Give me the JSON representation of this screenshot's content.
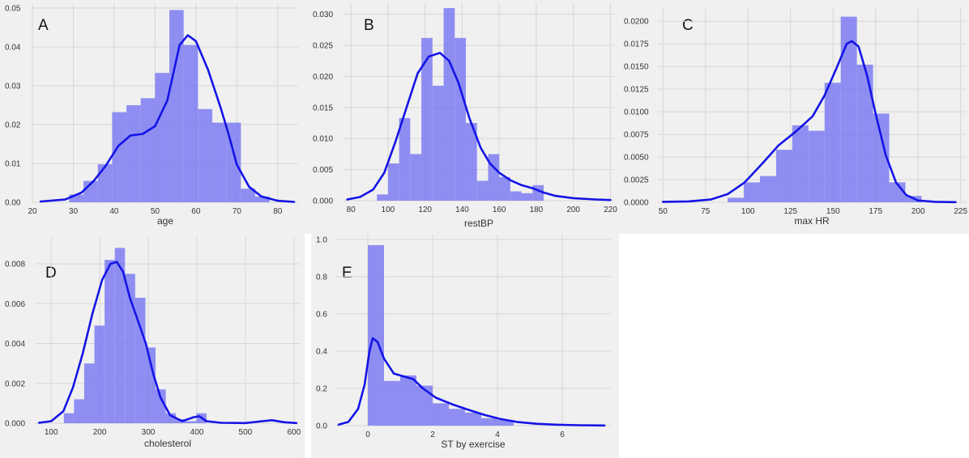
{
  "colors": {
    "panel_bg": "#f0f0f0",
    "bar": "#7878f2",
    "kde": "#1414e6",
    "grid": "#d6d6d6"
  },
  "chart_data": [
    {
      "panel": "A",
      "type": "bar",
      "subtype": "histogram-with-kde",
      "xlabel": "age",
      "xlim": [
        20,
        85
      ],
      "ylim": [
        0,
        0.05
      ],
      "xticks": [
        20,
        30,
        40,
        50,
        60,
        70,
        80
      ],
      "yticks": [
        "0.00",
        "0.01",
        "0.02",
        "0.03",
        "0.04",
        "0.05"
      ],
      "bins": [
        [
          29,
          32.5,
          0.002
        ],
        [
          32.5,
          36,
          0.0055
        ],
        [
          36,
          39.5,
          0.0098
        ],
        [
          39.5,
          43,
          0.0232
        ],
        [
          43,
          46.5,
          0.025
        ],
        [
          46.5,
          50,
          0.0268
        ],
        [
          50,
          53.5,
          0.0333
        ],
        [
          53.5,
          57,
          0.0495
        ],
        [
          57,
          60.5,
          0.0405
        ],
        [
          60.5,
          64,
          0.024
        ],
        [
          64,
          67.5,
          0.0205
        ],
        [
          67.5,
          71,
          0.0205
        ],
        [
          71,
          74.5,
          0.0035
        ],
        [
          74.5,
          78,
          0.0015
        ]
      ],
      "kde": [
        [
          22,
          0.0002
        ],
        [
          28,
          0.0007
        ],
        [
          32,
          0.0025
        ],
        [
          35,
          0.0055
        ],
        [
          38,
          0.0095
        ],
        [
          41,
          0.0145
        ],
        [
          44,
          0.0172
        ],
        [
          47,
          0.0176
        ],
        [
          50,
          0.0196
        ],
        [
          53,
          0.0262
        ],
        [
          56,
          0.0405
        ],
        [
          58,
          0.043
        ],
        [
          60,
          0.0415
        ],
        [
          63,
          0.034
        ],
        [
          66,
          0.0245
        ],
        [
          68,
          0.0175
        ],
        [
          70,
          0.0097
        ],
        [
          73,
          0.004
        ],
        [
          76,
          0.0015
        ],
        [
          80,
          0.0004
        ],
        [
          84,
          0.0001
        ]
      ]
    },
    {
      "panel": "B",
      "type": "bar",
      "subtype": "histogram-with-kde",
      "xlabel": "restBP",
      "xlim": [
        76,
        222
      ],
      "ylim": [
        0,
        0.031
      ],
      "xticks": [
        80,
        100,
        120,
        140,
        160,
        180,
        200,
        220
      ],
      "yticks": [
        "0.000",
        "0.005",
        "0.010",
        "0.015",
        "0.020",
        "0.025",
        "0.030"
      ],
      "bins": [
        [
          94,
          100,
          0.001
        ],
        [
          100,
          106,
          0.006
        ],
        [
          106,
          112,
          0.0133
        ],
        [
          112,
          118,
          0.0075
        ],
        [
          118,
          124,
          0.0262
        ],
        [
          124,
          130,
          0.0185
        ],
        [
          130,
          136,
          0.031
        ],
        [
          136,
          142,
          0.0262
        ],
        [
          142,
          148,
          0.0125
        ],
        [
          148,
          154,
          0.0032
        ],
        [
          154,
          160,
          0.0075
        ],
        [
          160,
          166,
          0.0038
        ],
        [
          166,
          172,
          0.0015
        ],
        [
          172,
          178,
          0.0012
        ],
        [
          178,
          184,
          0.0025
        ]
      ],
      "kde": [
        [
          78,
          0.0002
        ],
        [
          85,
          0.0006
        ],
        [
          92,
          0.0018
        ],
        [
          98,
          0.0045
        ],
        [
          104,
          0.0095
        ],
        [
          110,
          0.015
        ],
        [
          116,
          0.0205
        ],
        [
          122,
          0.0232
        ],
        [
          128,
          0.0238
        ],
        [
          133,
          0.0225
        ],
        [
          138,
          0.019
        ],
        [
          144,
          0.0132
        ],
        [
          150,
          0.0085
        ],
        [
          155,
          0.006
        ],
        [
          160,
          0.0045
        ],
        [
          166,
          0.0033
        ],
        [
          172,
          0.0025
        ],
        [
          178,
          0.002
        ],
        [
          184,
          0.0013
        ],
        [
          190,
          0.0008
        ],
        [
          200,
          0.0004
        ],
        [
          212,
          0.0002
        ],
        [
          220,
          0.0001
        ]
      ]
    },
    {
      "panel": "C",
      "type": "bar",
      "subtype": "histogram-with-kde",
      "xlabel": "max HR",
      "xlim": [
        47,
        228
      ],
      "ylim": [
        0,
        0.021
      ],
      "xticks": [
        50,
        75,
        100,
        125,
        150,
        175,
        200,
        225
      ],
      "yticks": [
        "0.0000",
        "0.0025",
        "0.0050",
        "0.0075",
        "0.0100",
        "0.0125",
        "0.0150",
        "0.0175",
        "0.0200"
      ],
      "bins": [
        [
          88,
          97.5,
          0.0005
        ],
        [
          97.5,
          107,
          0.0022
        ],
        [
          107,
          116.5,
          0.0029
        ],
        [
          116.5,
          126,
          0.0058
        ],
        [
          126,
          135.5,
          0.0085
        ],
        [
          135.5,
          145,
          0.0079
        ],
        [
          145,
          154.5,
          0.0132
        ],
        [
          154.5,
          164,
          0.0205
        ],
        [
          164,
          173.5,
          0.0152
        ],
        [
          173.5,
          183,
          0.0098
        ],
        [
          183,
          192.5,
          0.0022
        ],
        [
          192.5,
          202,
          0.0007
        ]
      ],
      "kde": [
        [
          50,
          5e-05
        ],
        [
          65,
          0.0001
        ],
        [
          78,
          0.0003
        ],
        [
          88,
          0.0009
        ],
        [
          98,
          0.0022
        ],
        [
          108,
          0.0042
        ],
        [
          118,
          0.0063
        ],
        [
          128,
          0.0078
        ],
        [
          138,
          0.0095
        ],
        [
          145,
          0.0118
        ],
        [
          152,
          0.0148
        ],
        [
          158,
          0.0175
        ],
        [
          161,
          0.0178
        ],
        [
          165,
          0.0172
        ],
        [
          170,
          0.014
        ],
        [
          175,
          0.0098
        ],
        [
          181,
          0.0052
        ],
        [
          187,
          0.0022
        ],
        [
          193,
          0.0008
        ],
        [
          200,
          0.0002
        ],
        [
          210,
          5e-05
        ],
        [
          222,
          2e-05
        ]
      ]
    },
    {
      "panel": "D",
      "type": "bar",
      "subtype": "histogram-with-kde",
      "xlabel": "cholesterol",
      "xlim": [
        68,
        612
      ],
      "ylim": [
        0,
        0.0091
      ],
      "xticks": [
        100,
        200,
        300,
        400,
        500,
        600
      ],
      "yticks": [
        "0.000",
        "0.002",
        "0.004",
        "0.006",
        "0.008"
      ],
      "bins": [
        [
          126,
          147,
          0.0005
        ],
        [
          147,
          168,
          0.0012
        ],
        [
          168,
          189,
          0.003
        ],
        [
          189,
          210,
          0.0049
        ],
        [
          210,
          231,
          0.0082
        ],
        [
          231,
          252,
          0.0088
        ],
        [
          252,
          273,
          0.0075
        ],
        [
          273,
          294,
          0.0063
        ],
        [
          294,
          315,
          0.0038
        ],
        [
          315,
          336,
          0.0017
        ],
        [
          336,
          357,
          0.0005
        ],
        [
          357,
          378,
          0.0002
        ],
        [
          378,
          399,
          0.0001
        ],
        [
          399,
          420,
          0.0005
        ]
      ],
      "kde": [
        [
          75,
          2e-05
        ],
        [
          100,
          0.0001
        ],
        [
          125,
          0.0006
        ],
        [
          145,
          0.0018
        ],
        [
          165,
          0.0035
        ],
        [
          185,
          0.0055
        ],
        [
          205,
          0.0072
        ],
        [
          222,
          0.008
        ],
        [
          235,
          0.0081
        ],
        [
          248,
          0.0076
        ],
        [
          262,
          0.0063
        ],
        [
          278,
          0.0052
        ],
        [
          295,
          0.004
        ],
        [
          310,
          0.0025
        ],
        [
          325,
          0.0013
        ],
        [
          345,
          0.0004
        ],
        [
          370,
          0.0001
        ],
        [
          393,
          0.0003
        ],
        [
          405,
          0.00035
        ],
        [
          420,
          0.0001
        ],
        [
          450,
          2e-05
        ],
        [
          500,
          1e-05
        ],
        [
          535,
          0.0001
        ],
        [
          555,
          0.00015
        ],
        [
          580,
          5e-05
        ],
        [
          605,
          1e-05
        ]
      ]
    },
    {
      "panel": "E",
      "type": "bar",
      "subtype": "histogram-with-kde",
      "xlabel": "ST by exercise",
      "xlim": [
        -1,
        7.5
      ],
      "ylim": [
        0,
        1.0
      ],
      "xticks": [
        0,
        2,
        4,
        6
      ],
      "yticks": [
        "0.0",
        "0.2",
        "0.4",
        "0.6",
        "0.8",
        "1.0"
      ],
      "bins": [
        [
          0,
          0.5,
          0.97
        ],
        [
          0.5,
          1.0,
          0.24
        ],
        [
          1.0,
          1.5,
          0.27
        ],
        [
          1.5,
          2.0,
          0.215
        ],
        [
          2.0,
          2.5,
          0.12
        ],
        [
          2.5,
          3.0,
          0.09
        ],
        [
          3.0,
          3.5,
          0.07
        ],
        [
          3.5,
          4.0,
          0.04
        ],
        [
          4.0,
          4.5,
          0.03
        ]
      ],
      "kde": [
        [
          -0.9,
          0.005
        ],
        [
          -0.6,
          0.02
        ],
        [
          -0.3,
          0.09
        ],
        [
          -0.1,
          0.22
        ],
        [
          0.05,
          0.4
        ],
        [
          0.15,
          0.47
        ],
        [
          0.3,
          0.45
        ],
        [
          0.5,
          0.36
        ],
        [
          0.8,
          0.28
        ],
        [
          1.1,
          0.265
        ],
        [
          1.4,
          0.25
        ],
        [
          1.7,
          0.2
        ],
        [
          2.1,
          0.15
        ],
        [
          2.6,
          0.115
        ],
        [
          3.1,
          0.085
        ],
        [
          3.6,
          0.058
        ],
        [
          4.1,
          0.035
        ],
        [
          4.6,
          0.02
        ],
        [
          5.2,
          0.01
        ],
        [
          5.8,
          0.005
        ],
        [
          6.5,
          0.002
        ],
        [
          7.3,
          0.001
        ]
      ]
    }
  ]
}
